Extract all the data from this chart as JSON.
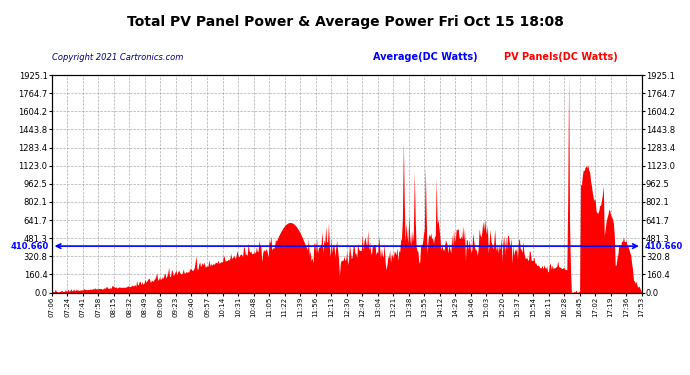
{
  "title": "Total PV Panel Power & Average Power Fri Oct 15 18:08",
  "copyright": "Copyright 2021 Cartronics.com",
  "legend_avg": "Average(DC Watts)",
  "legend_pv": "PV Panels(DC Watts)",
  "avg_value": 410.66,
  "ymax": 1925.1,
  "yticks": [
    0.0,
    160.4,
    320.8,
    481.3,
    641.7,
    802.1,
    962.5,
    1123.0,
    1283.4,
    1443.8,
    1604.2,
    1764.7,
    1925.1
  ],
  "ytick_labels": [
    "0.0",
    "160.4",
    "320.8",
    "481.3",
    "641.7",
    "802.1",
    "962.5",
    "1123.0",
    "1283.4",
    "1443.8",
    "1604.2",
    "1764.7",
    "1925.1"
  ],
  "background_color": "#ffffff",
  "fill_color": "#ff0000",
  "line_color": "#ff0000",
  "avg_line_color": "#0000ff",
  "grid_color": "#999999",
  "title_color": "#000000",
  "copyright_color": "#000080",
  "avg_label_color": "#0000ff",
  "pv_label_color": "#ff0000",
  "time_labels": [
    "07:06",
    "07:24",
    "07:41",
    "07:58",
    "08:15",
    "08:32",
    "08:49",
    "09:06",
    "09:23",
    "09:40",
    "09:57",
    "10:14",
    "10:31",
    "10:48",
    "11:05",
    "11:22",
    "11:39",
    "11:56",
    "12:13",
    "12:30",
    "12:47",
    "13:04",
    "13:21",
    "13:38",
    "13:55",
    "14:12",
    "14:29",
    "14:46",
    "15:03",
    "15:20",
    "15:37",
    "15:54",
    "16:11",
    "16:28",
    "16:45",
    "17:02",
    "17:19",
    "17:36",
    "17:53"
  ]
}
